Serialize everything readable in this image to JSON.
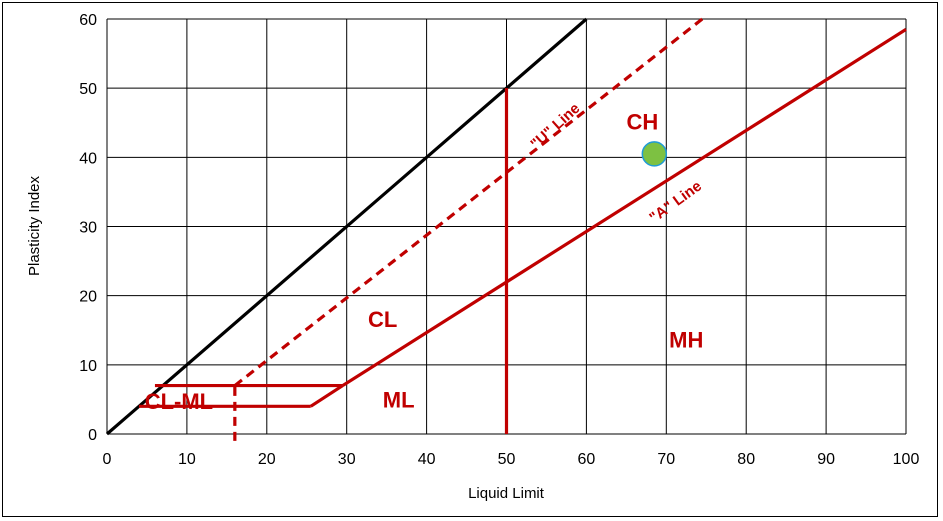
{
  "chart_data": {
    "type": "line",
    "xlabel": "Liquid Limit",
    "ylabel": "Plasticity Index",
    "xlim": [
      0,
      100
    ],
    "ylim": [
      0,
      60
    ],
    "xticks": [
      0,
      10,
      20,
      30,
      40,
      50,
      60,
      70,
      80,
      90,
      100
    ],
    "yticks": [
      0,
      10,
      20,
      30,
      40,
      50,
      60
    ],
    "grid": true,
    "colors": {
      "red": "#c00000",
      "black": "#000000",
      "point_fill": "#7dc142",
      "point_stroke": "#1f9bd7"
    },
    "series": [
      {
        "x": [
          0,
          60
        ],
        "y": [
          0,
          60
        ],
        "color": "#000000",
        "style": "solid"
      },
      {
        "x": [
          16,
          74.5
        ],
        "y": [
          7,
          60
        ],
        "color": "#c00000",
        "style": "dashed"
      },
      {
        "x": [
          29.5,
          100
        ],
        "y": [
          7,
          58.5
        ],
        "color": "#c00000",
        "style": "solid"
      },
      {
        "x": [
          50,
          50
        ],
        "y": [
          0,
          50
        ],
        "color": "#c00000",
        "style": "solid"
      },
      {
        "x": [
          6,
          29.5
        ],
        "y": [
          7,
          7
        ],
        "color": "#c00000",
        "style": "solid"
      },
      {
        "x": [
          4,
          25.5
        ],
        "y": [
          4,
          4
        ],
        "color": "#c00000",
        "style": "solid"
      },
      {
        "x": [
          25.5,
          29.5
        ],
        "y": [
          4,
          7
        ],
        "color": "#c00000",
        "style": "solid"
      },
      {
        "x": [
          16,
          16
        ],
        "y": [
          -1,
          7
        ],
        "color": "#c00000",
        "style": "dashed"
      }
    ],
    "points": [
      {
        "x": 68.5,
        "y": 40.5
      }
    ],
    "annotations": [
      {
        "text": "CH",
        "x": 67,
        "y": 44,
        "kind": "zone",
        "rotate": 0
      },
      {
        "text": "CL",
        "x": 34.5,
        "y": 15.5,
        "kind": "zone",
        "rotate": 0
      },
      {
        "text": "MH",
        "x": 72.5,
        "y": 12.5,
        "kind": "zone",
        "rotate": 0
      },
      {
        "text": "ML",
        "x": 36.5,
        "y": 3.8,
        "kind": "zone",
        "rotate": 0
      },
      {
        "text": "CL-ML",
        "x": 9,
        "y": 3.6,
        "kind": "zone-small",
        "rotate": 0
      },
      {
        "text": "\"U\" Line",
        "x": 56.5,
        "y": 44,
        "kind": "line",
        "rotate": -42
      },
      {
        "text": "\"A\" Line",
        "x": 71.5,
        "y": 33,
        "kind": "line",
        "rotate": -36
      }
    ]
  }
}
